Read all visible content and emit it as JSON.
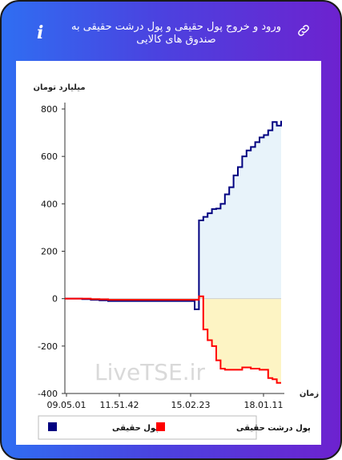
{
  "header": {
    "title": "ورود و خروج پول حقیقی و پول درشت حقیقی به صندوق های کالایی",
    "info_icon": "info-icon",
    "link_icon": "link-icon"
  },
  "watermark": "LiveTSE.ir",
  "colors": {
    "background_left": "#2f6ef2",
    "background_right": "#6d22cf",
    "series1": "#000080",
    "series2": "#ff0000",
    "area1": "#e8f3fa",
    "area2": "#fdf4c4"
  },
  "chart_data": {
    "type": "line",
    "ylabel": "میلیارد تومان",
    "xlabel": "زمان",
    "ylim": [
      -400,
      800
    ],
    "yticks": [
      -400,
      -200,
      0,
      200,
      400,
      600,
      800
    ],
    "xticks": [
      "09.05.01",
      "11.51.42",
      "15.02.23",
      "18.01.11"
    ],
    "grid": false,
    "legend_position": "bottom",
    "x": [
      0,
      4,
      8,
      12,
      16,
      20,
      24,
      28,
      32,
      36,
      40,
      44,
      48,
      52,
      56,
      60,
      62,
      64,
      66,
      68,
      70,
      72,
      74,
      76,
      78,
      80,
      82,
      84,
      86,
      88,
      90,
      92,
      94,
      96,
      98,
      100
    ],
    "series": [
      {
        "name": "پول حقیقی",
        "color": "#000080",
        "values": [
          0,
          0,
          -2,
          -5,
          -7,
          -10,
          -10,
          -10,
          -10,
          -10,
          -10,
          -10,
          -10,
          -10,
          -10,
          -45,
          330,
          345,
          360,
          378,
          380,
          400,
          440,
          470,
          520,
          555,
          600,
          625,
          640,
          660,
          680,
          690,
          710,
          745,
          730,
          750
        ]
      },
      {
        "name": "پول درشت حقیقی",
        "color": "#ff0000",
        "values": [
          0,
          0,
          0,
          -2,
          -3,
          -5,
          -5,
          -5,
          -5,
          -5,
          -5,
          -5,
          -5,
          -5,
          -5,
          -5,
          10,
          -130,
          -175,
          -200,
          -260,
          -295,
          -300,
          -300,
          -300,
          -300,
          -290,
          -290,
          -295,
          -295,
          -300,
          -300,
          -335,
          -340,
          -355,
          -355
        ]
      }
    ]
  }
}
